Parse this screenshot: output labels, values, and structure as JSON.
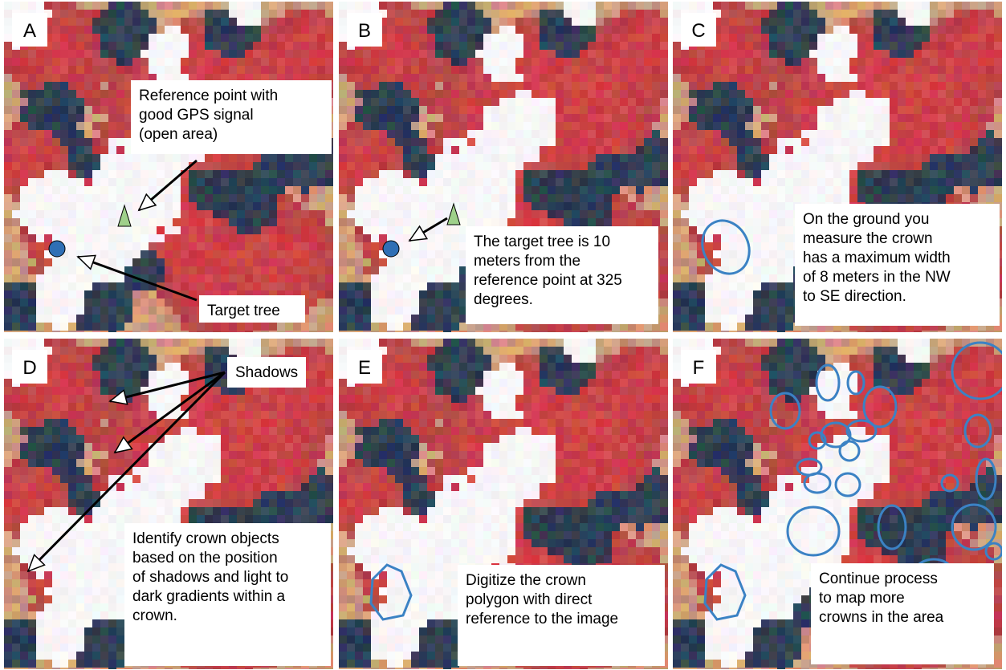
{
  "panels": [
    {
      "label": "A",
      "callouts": [
        {
          "lines": [
            "Reference point with",
            "good GPS signal",
            "(open area)"
          ]
        },
        {
          "lines": [
            "Target tree"
          ]
        }
      ]
    },
    {
      "label": "B",
      "callouts": [
        {
          "lines": [
            "The target tree is 10",
            "meters from the",
            "reference point at 325",
            "degrees."
          ]
        }
      ]
    },
    {
      "label": "C",
      "callouts": [
        {
          "lines": [
            "On the ground you",
            "measure the crown",
            "has a maximum width",
            "of 8 meters in the NW",
            "to SE direction."
          ]
        }
      ]
    },
    {
      "label": "D",
      "callouts": [
        {
          "lines": [
            "Shadows"
          ]
        },
        {
          "lines": [
            "Identify crown objects",
            "based on the position",
            "of shadows and light to",
            "dark gradients within a",
            "crown."
          ]
        }
      ]
    },
    {
      "label": "E",
      "callouts": [
        {
          "lines": [
            "Digitize the crown",
            "polygon with direct",
            "reference to the image"
          ]
        }
      ]
    },
    {
      "label": "F",
      "callouts": [
        {
          "lines": [
            "Continue process",
            "to map more",
            "crowns in the area"
          ]
        }
      ]
    }
  ]
}
